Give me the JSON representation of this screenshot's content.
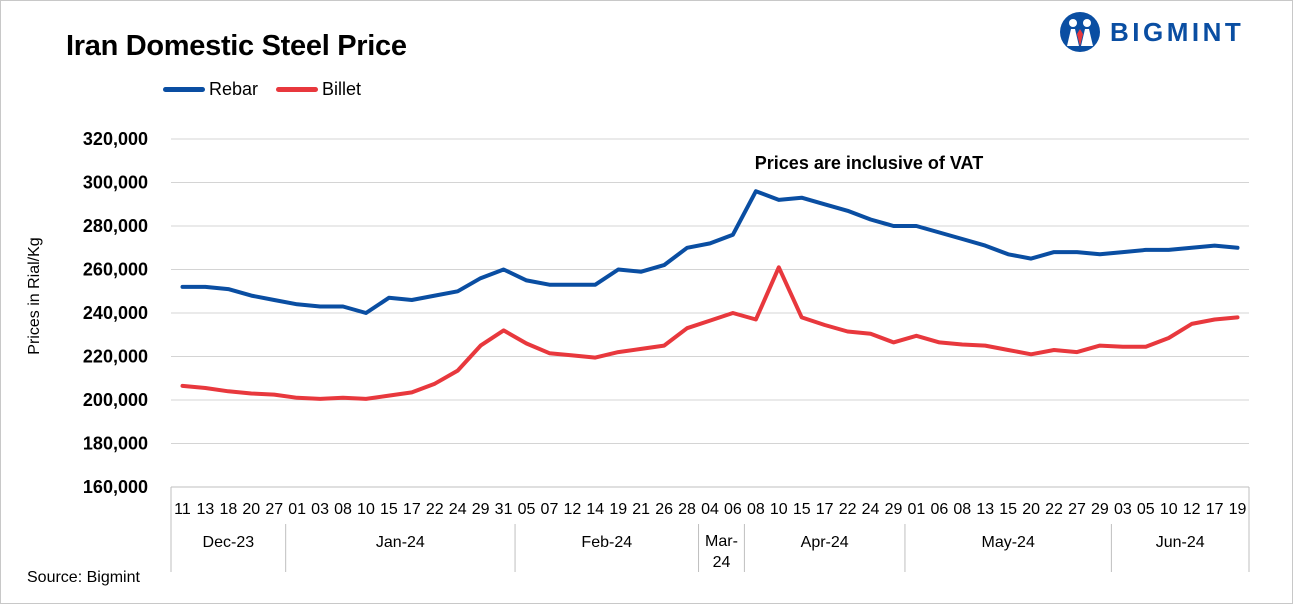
{
  "title": "Iran Domestic Steel Price",
  "brand": {
    "name": "BIGMINT",
    "color": "#0a4ea2"
  },
  "source": "Source: Bigmint",
  "chart_data": {
    "type": "line",
    "title": "Iran Domestic Steel Price",
    "ylabel": "Prices in Rial/Kg",
    "xlabel": "",
    "ylim": [
      160000,
      320000
    ],
    "yticks": [
      160000,
      180000,
      200000,
      220000,
      240000,
      260000,
      280000,
      300000,
      320000
    ],
    "ytick_labels": [
      "160,000",
      "180,000",
      "200,000",
      "220,000",
      "240,000",
      "260,000",
      "280,000",
      "300,000",
      "320,000"
    ],
    "grid": "horizontal",
    "legend": "top-left",
    "annotation": "Prices are inclusive of VAT",
    "x": [
      "11",
      "13",
      "18",
      "20",
      "27",
      "01",
      "03",
      "08",
      "10",
      "15",
      "17",
      "22",
      "24",
      "29",
      "31",
      "05",
      "07",
      "12",
      "14",
      "19",
      "21",
      "26",
      "28",
      "04",
      "06",
      "08",
      "10",
      "15",
      "17",
      "22",
      "24",
      "29",
      "01",
      "06",
      "08",
      "13",
      "15",
      "20",
      "22",
      "27",
      "29",
      "03",
      "05",
      "10",
      "12",
      "17",
      "19"
    ],
    "groups": [
      {
        "label": "Dec-23",
        "count": 5
      },
      {
        "label": "Jan-24",
        "count": 10
      },
      {
        "label": "Feb-24",
        "count": 8
      },
      {
        "label": "Mar-24",
        "count": 2
      },
      {
        "label": "Apr-24",
        "count": 7
      },
      {
        "label": "May-24",
        "count": 9
      },
      {
        "label": "Jun-24",
        "count": 6
      }
    ],
    "series": [
      {
        "name": "Rebar",
        "color": "#0a4ea2",
        "values": [
          252000,
          252000,
          251000,
          248000,
          246000,
          244000,
          243000,
          243000,
          240000,
          247000,
          246000,
          248000,
          250000,
          256000,
          260000,
          255000,
          253000,
          253000,
          253000,
          260000,
          259000,
          262000,
          270000,
          272000,
          276000,
          296000,
          292000,
          293000,
          290000,
          287000,
          283000,
          280000,
          280000,
          277000,
          274000,
          271000,
          267000,
          265000,
          268000,
          268000,
          267000,
          268000,
          269000,
          269000,
          270000,
          271000,
          270000
        ]
      },
      {
        "name": "Billet",
        "color": "#e8383d",
        "values": [
          206500,
          205500,
          204000,
          203000,
          202500,
          201000,
          200500,
          201000,
          200500,
          202000,
          203500,
          207500,
          213500,
          225000,
          232000,
          226000,
          221500,
          220500,
          219500,
          222000,
          223500,
          225000,
          233000,
          236500,
          240000,
          237000,
          261000,
          238000,
          234500,
          231500,
          230500,
          226500,
          229500,
          226500,
          225500,
          225000,
          223000,
          221000,
          223000,
          222000,
          225000,
          224500,
          224500,
          228500,
          235000,
          237000,
          238000
        ]
      }
    ]
  }
}
